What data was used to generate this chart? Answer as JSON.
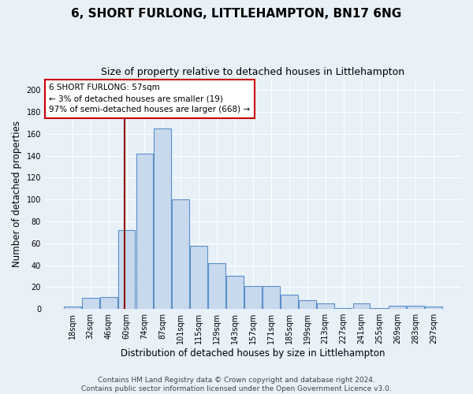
{
  "title": "6, SHORT FURLONG, LITTLEHAMPTON, BN17 6NG",
  "subtitle": "Size of property relative to detached houses in Littlehampton",
  "xlabel": "Distribution of detached houses by size in Littlehampton",
  "ylabel": "Number of detached properties",
  "bar_labels": [
    "18sqm",
    "32sqm",
    "46sqm",
    "60sqm",
    "74sqm",
    "87sqm",
    "101sqm",
    "115sqm",
    "129sqm",
    "143sqm",
    "157sqm",
    "171sqm",
    "185sqm",
    "199sqm",
    "213sqm",
    "227sqm",
    "241sqm",
    "255sqm",
    "269sqm",
    "283sqm",
    "297sqm"
  ],
  "bar_values": [
    2,
    10,
    11,
    72,
    142,
    165,
    100,
    58,
    42,
    30,
    21,
    21,
    13,
    8,
    5,
    1,
    5,
    1,
    3,
    3,
    2
  ],
  "bar_color": "#c9d9ed",
  "bar_edge_color": "#5b8fc9",
  "background_color": "#e8f0f8",
  "grid_color": "#ffffff",
  "red_line_x": 2.87,
  "annotation_text": "6 SHORT FURLONG: 57sqm\n← 3% of detached houses are smaller (19)\n97% of semi-detached houses are larger (668) →",
  "annotation_box_color": "#ffffff",
  "annotation_box_edge": "#cc0000",
  "footer_line1": "Contains HM Land Registry data © Crown copyright and database right 2024.",
  "footer_line2": "Contains public sector information licensed under the Open Government Licence v3.0.",
  "ylim": [
    0,
    210
  ],
  "yticks": [
    0,
    20,
    40,
    60,
    80,
    100,
    120,
    140,
    160,
    180,
    200
  ],
  "title_fontsize": 11,
  "subtitle_fontsize": 9,
  "xlabel_fontsize": 8.5,
  "ylabel_fontsize": 8.5,
  "tick_fontsize": 7,
  "footer_fontsize": 6.5
}
